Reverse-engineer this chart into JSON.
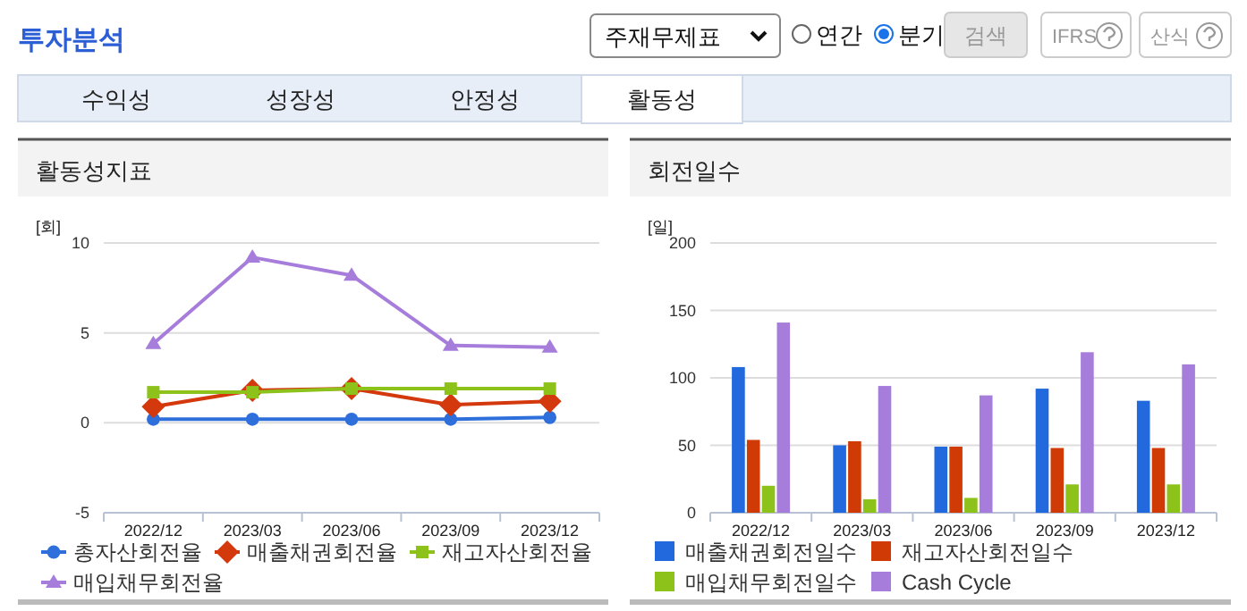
{
  "chart_data": [
    {
      "type": "other",
      "title": "투자분석",
      "annotations": [
        "주재무제표",
        "연간",
        "분기",
        "검색",
        "IFRS",
        "산식",
        "수익성",
        "성장성",
        "안정성",
        "활동성"
      ]
    },
    {
      "type": "line",
      "title": "활동성지표",
      "ylabel": "[회]",
      "categories": [
        "2022/12",
        "2023/03",
        "2023/06",
        "2023/09",
        "2023/12"
      ],
      "ylim": [
        -5,
        10
      ],
      "yticks": [
        -5,
        0,
        5,
        10
      ],
      "grid": "y",
      "legend": "bottom",
      "series": [
        {
          "name": "총자산회전율",
          "color": "#2f6fdc",
          "marker": "circle",
          "values": [
            0.2,
            0.2,
            0.2,
            0.2,
            0.3
          ]
        },
        {
          "name": "매출채권회전율",
          "color": "#d4380d",
          "marker": "diamond",
          "values": [
            0.9,
            1.8,
            1.9,
            1.0,
            1.2
          ]
        },
        {
          "name": "재고자산회전율",
          "color": "#8cc21a",
          "marker": "square",
          "values": [
            1.7,
            1.7,
            1.9,
            1.9,
            1.9
          ]
        },
        {
          "name": "매입채무회전율",
          "color": "#a77ddb",
          "marker": "triangle",
          "values": [
            4.4,
            9.2,
            8.2,
            4.3,
            4.2
          ]
        }
      ]
    },
    {
      "type": "bar",
      "title": "회전일수",
      "ylabel": "[일]",
      "categories": [
        "2022/12",
        "2023/03",
        "2023/06",
        "2023/09",
        "2023/12"
      ],
      "ylim": [
        0,
        200
      ],
      "yticks": [
        0,
        50,
        100,
        150,
        200
      ],
      "grid": "y",
      "legend": "bottom",
      "series": [
        {
          "name": "매출채권회전일수",
          "color": "#2169dc",
          "values": [
            108,
            50,
            49,
            92,
            83
          ]
        },
        {
          "name": "재고자산회전일수",
          "color": "#d03a05",
          "values": [
            54,
            53,
            49,
            48,
            48
          ]
        },
        {
          "name": "매입채무회전일수",
          "color": "#8cc21a",
          "values": [
            20,
            10,
            11,
            21,
            21
          ]
        },
        {
          "name": "Cash Cycle",
          "color": "#a77ddb",
          "values": [
            141,
            94,
            87,
            119,
            110
          ]
        }
      ]
    }
  ]
}
